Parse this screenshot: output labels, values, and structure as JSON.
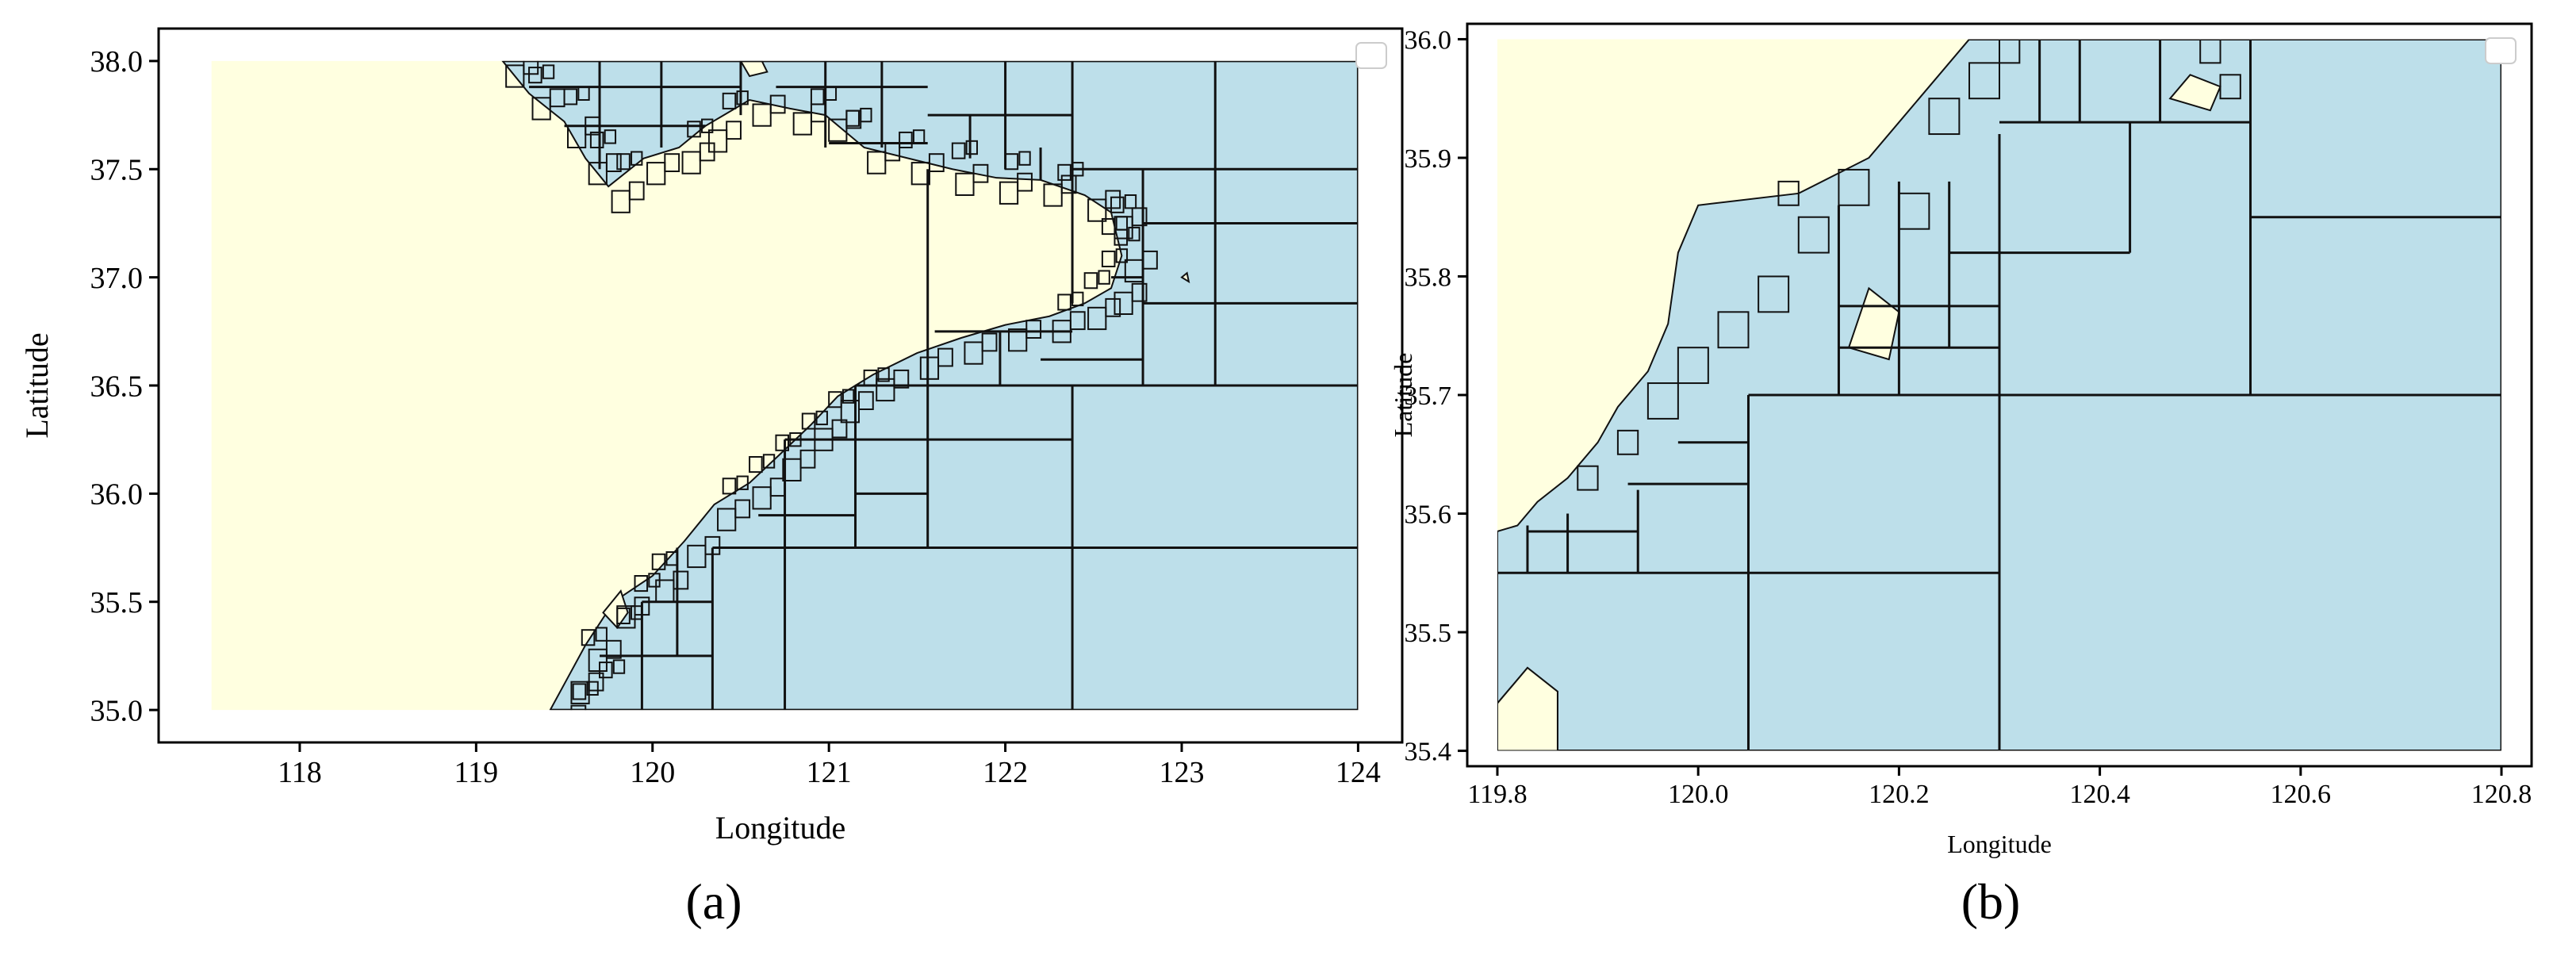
{
  "colors": {
    "land": "#ffffe0",
    "sea": "#bddfea",
    "grid_line": "#111111",
    "frame": "#000000"
  },
  "panels": [
    {
      "id": "a",
      "caption": "(a)",
      "xlabel": "Longitude",
      "ylabel": "Latitude",
      "xticks": [
        "118",
        "119",
        "120",
        "121",
        "122",
        "123",
        "124"
      ],
      "yticks": [
        "35.0",
        "35.5",
        "36.0",
        "36.5",
        "37.0",
        "37.5",
        "38.0"
      ],
      "xlim": [
        117.2,
        124.25
      ],
      "ylim": [
        34.85,
        38.15
      ],
      "extent": {
        "lon": [
          117.5,
          124.0
        ],
        "lat": [
          35.0,
          38.0
        ]
      },
      "legend": "top-right (empty)"
    },
    {
      "id": "b",
      "caption": "(b)",
      "xlabel": "Longitude",
      "ylabel": "Latitude",
      "xticks": [
        "119.8",
        "120.0",
        "120.2",
        "120.4",
        "120.6",
        "120.8"
      ],
      "yticks": [
        "35.4",
        "35.5",
        "35.6",
        "35.7",
        "35.8",
        "35.9",
        "36.0"
      ],
      "xlim": [
        119.77,
        120.83
      ],
      "ylim": [
        35.387,
        36.013
      ],
      "extent": {
        "lon": [
          119.8,
          120.8
        ],
        "lat": [
          35.4,
          36.0
        ]
      },
      "legend": "top-right (empty)"
    }
  ]
}
